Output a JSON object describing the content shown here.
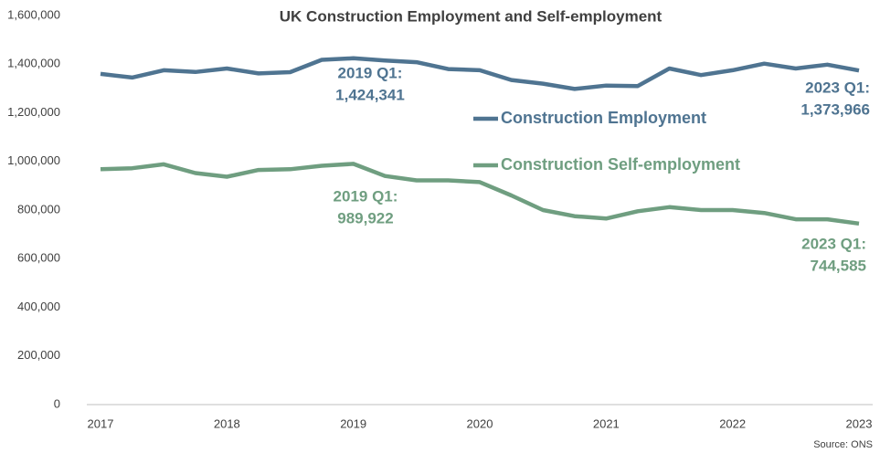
{
  "chart_data": {
    "type": "line",
    "title": "UK Construction Employment and Self-employment",
    "source": "Source: ONS",
    "categories": [
      "2017",
      null,
      null,
      null,
      "2018",
      null,
      null,
      null,
      "2019",
      null,
      null,
      null,
      "2020",
      null,
      null,
      null,
      "2021",
      null,
      null,
      null,
      "2022",
      null,
      null,
      null,
      "2023"
    ],
    "series": [
      {
        "name": "Construction Employment",
        "color": "#4f7491",
        "values": [
          1360000,
          1345000,
          1375000,
          1368000,
          1382000,
          1362000,
          1367000,
          1418000,
          1424341,
          1415000,
          1408000,
          1380000,
          1375000,
          1335000,
          1320000,
          1298000,
          1312000,
          1310000,
          1382000,
          1355000,
          1375000,
          1402000,
          1382000,
          1398000,
          1373966
        ]
      },
      {
        "name": "Construction Self-employment",
        "color": "#6f9e80",
        "values": [
          968000,
          972000,
          988000,
          952000,
          937000,
          965000,
          968000,
          982000,
          989922,
          940000,
          922000,
          922000,
          915000,
          860000,
          800000,
          775000,
          765000,
          795000,
          812000,
          800000,
          800000,
          788000,
          762000,
          762000,
          744585
        ]
      }
    ],
    "annotations": [
      {
        "text": [
          "2019 Q1:",
          "1,424,341"
        ]
      },
      {
        "text": [
          "2023 Q1:",
          "1,373,966"
        ]
      },
      {
        "text": [
          "2019 Q1:",
          "989,922"
        ]
      },
      {
        "text": [
          "2023 Q1:",
          "744,585"
        ]
      }
    ],
    "ylim": [
      0,
      1600000
    ],
    "yticks": [
      0,
      {
        "value": 200000,
        "label": "200,000"
      },
      {
        "value": 400000,
        "label": "400,000"
      },
      {
        "value": 600000,
        "label": "600,000"
      },
      {
        "value": 800000,
        "label": "800,000"
      },
      {
        "value": 1000000,
        "label": "1,000,000"
      },
      {
        "value": 1200000,
        "label": "1,200,000"
      },
      {
        "value": 1400000,
        "label": "1,400,000"
      },
      {
        "value": 1600000,
        "label": "1,600,000"
      }
    ]
  }
}
